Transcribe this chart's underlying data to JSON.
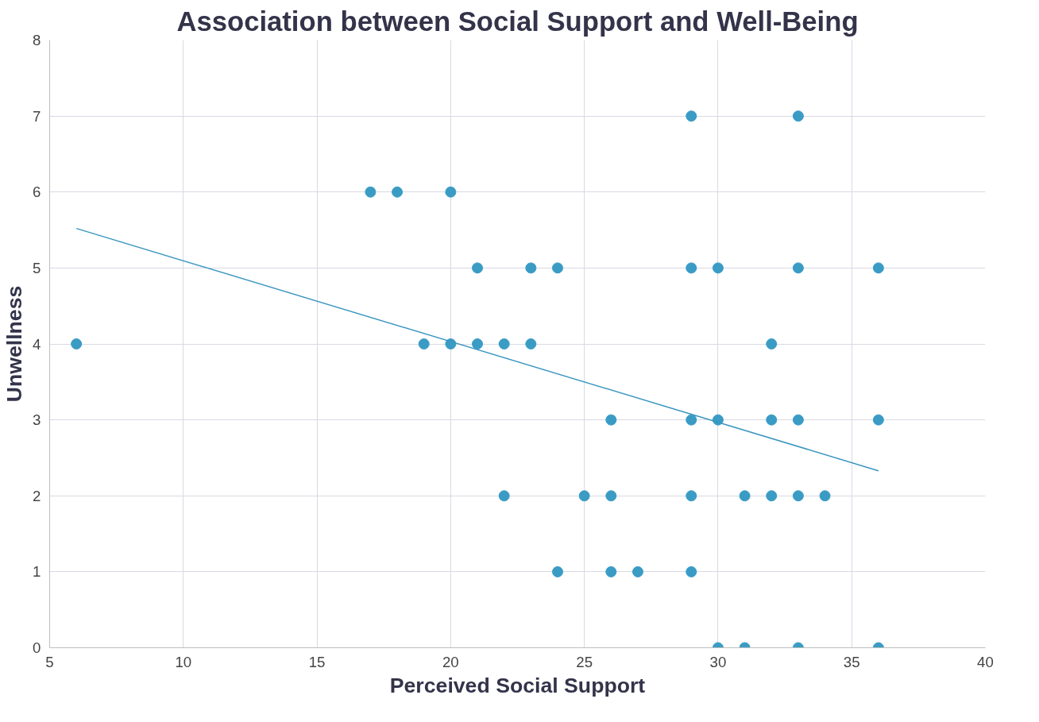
{
  "chart_data": {
    "type": "scatter",
    "title": "Association between Social Support and Well-Being",
    "xlabel": "Perceived Social Support",
    "ylabel": "Unwellness",
    "xlim": [
      5,
      40
    ],
    "xticks": [
      5,
      10,
      15,
      20,
      25,
      30,
      35,
      40
    ],
    "ylim": [
      0,
      8
    ],
    "yticks": [
      0,
      1,
      2,
      3,
      4,
      5,
      6,
      7,
      8
    ],
    "grid": true,
    "series": [
      {
        "marker": "circle",
        "color": "#3a9cc4",
        "x": [
          6,
          17,
          18,
          20,
          21,
          23,
          24,
          19,
          20,
          21,
          22,
          23,
          22,
          24,
          25,
          26,
          26,
          26,
          27,
          29,
          29,
          29,
          29,
          29,
          30,
          30,
          30,
          31,
          31,
          32,
          32,
          32,
          33,
          33,
          33,
          33,
          33,
          34,
          36,
          36,
          36
        ],
        "values": [
          4,
          6,
          6,
          6,
          5,
          5,
          5,
          4,
          4,
          4,
          4,
          4,
          2,
          1,
          2,
          3,
          2,
          1,
          1,
          7,
          5,
          3,
          2,
          1,
          5,
          3,
          0,
          2,
          0,
          4,
          3,
          2,
          7,
          5,
          3,
          2,
          0,
          2,
          5,
          3,
          0
        ]
      },
      {
        "type": "line",
        "color": "#3a96c0",
        "x": [
          6,
          36
        ],
        "values": [
          5.52,
          2.33
        ]
      }
    ]
  }
}
